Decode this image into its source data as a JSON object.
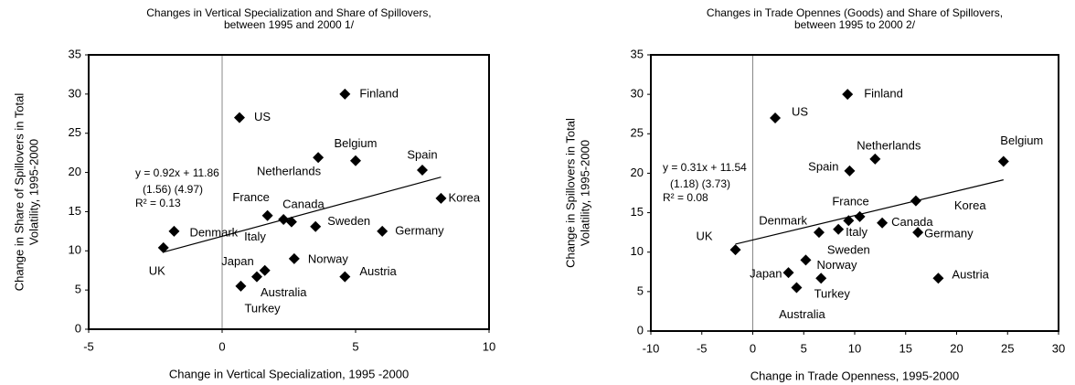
{
  "chart_data": [
    {
      "type": "scatter",
      "title": [
        "Changes in Vertical Specialization and Share of Spillovers,",
        "between 1995 and 2000 1/"
      ],
      "x_label": "Change in Vertical Specialization, 1995 -2000",
      "y_label": [
        "Change in Share of Spillovers in Total",
        "Volatility, 1995-2000"
      ],
      "labels": [
        "Finland",
        "US",
        "Belgium",
        "Netherlands",
        "Spain",
        "Korea",
        "France",
        "Canada",
        "Italy",
        "Sweden",
        "Germany",
        "Denmark",
        "UK",
        "Norway",
        "Austria",
        "Japan",
        "Australia",
        "Turkey"
      ],
      "x": [
        4.6,
        0.65,
        5.0,
        3.6,
        7.5,
        8.2,
        1.7,
        2.3,
        2.6,
        3.5,
        6.0,
        -1.8,
        -2.2,
        2.7,
        4.6,
        1.6,
        1.3,
        0.7
      ],
      "y": [
        30,
        27,
        21.5,
        21.9,
        20.3,
        16.7,
        14.5,
        14.0,
        13.7,
        13.1,
        12.5,
        12.5,
        10.4,
        9.0,
        6.7,
        7.5,
        6.7,
        5.5
      ],
      "color": "#000000",
      "trendline": {
        "slope": 0.92,
        "intercept": 11.86
      },
      "annotations": [
        "y = 0.92x + 11.86",
        "(1.56)  (4.97)",
        "R² = 0.13"
      ],
      "xlim": [
        -5,
        10
      ],
      "xticks": [
        -5,
        0,
        5,
        10
      ],
      "ylim": [
        0,
        35
      ],
      "yticks": [
        0,
        5,
        10,
        15,
        20,
        25,
        30,
        35
      ]
    },
    {
      "type": "scatter",
      "title": [
        "Changes in Trade Opennes (Goods) and  Share of Spillovers,",
        "between 1995 to 2000 2/"
      ],
      "x_label": "Change in Trade Openness, 1995-2000",
      "y_label": [
        "Change in Spillovers in Total",
        "Volatility, 1995-2000"
      ],
      "labels": [
        "Finland",
        "US",
        "Belgium",
        "Netherlands",
        "Spain",
        "Korea",
        "France",
        "Canada",
        "Italy",
        "Sweden",
        "Germany",
        "Denmark",
        "UK",
        "Norway",
        "Austria",
        "Japan",
        "Australia",
        "Turkey"
      ],
      "x": [
        9.3,
        2.2,
        24.6,
        12.0,
        9.5,
        16.0,
        10.5,
        12.7,
        8.4,
        9.4,
        16.2,
        6.5,
        -1.7,
        5.2,
        18.2,
        3.5,
        4.3,
        6.7
      ],
      "y": [
        30,
        27,
        21.5,
        21.8,
        20.3,
        16.5,
        14.5,
        13.7,
        12.9,
        14.0,
        12.5,
        12.5,
        10.3,
        9.0,
        6.7,
        7.4,
        5.5,
        6.7
      ],
      "color": "#000000",
      "trendline": {
        "slope": 0.31,
        "intercept": 11.54
      },
      "annotations": [
        "y = 0.31x + 11.54",
        "(1.18)  (3.73)",
        "R² = 0.08"
      ],
      "xlim": [
        -10,
        30
      ],
      "xticks": [
        -10,
        -5,
        0,
        5,
        10,
        15,
        20,
        25,
        30
      ],
      "ylim": [
        0,
        35
      ],
      "yticks": [
        0,
        5,
        10,
        15,
        20,
        25,
        30,
        35
      ]
    }
  ]
}
